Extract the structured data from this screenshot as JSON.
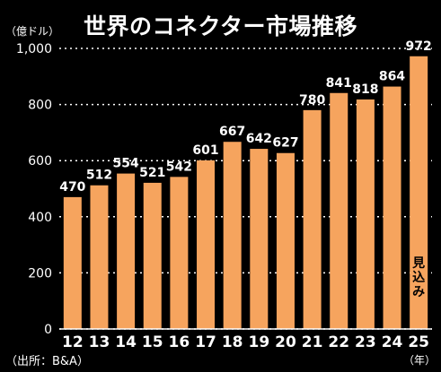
{
  "chart_data": {
    "type": "bar",
    "title": "世界のコネクター市場推移",
    "ylabel": "（億ドル）",
    "xlabel": "（年）",
    "source": "（出所：B&A）",
    "categories": [
      "12",
      "13",
      "14",
      "15",
      "16",
      "17",
      "18",
      "19",
      "20",
      "21",
      "22",
      "23",
      "24",
      "25"
    ],
    "values": [
      470,
      512,
      554,
      521,
      542,
      601,
      667,
      642,
      627,
      780,
      841,
      818,
      864,
      972
    ],
    "ylim": [
      0,
      1000
    ],
    "yticks": [
      0,
      200,
      400,
      600,
      800,
      1000
    ],
    "ytick_labels": [
      "0",
      "200",
      "400",
      "600",
      "800",
      "1,000"
    ],
    "grid": true,
    "bar_color": "#F6A45E",
    "background": "#000000",
    "annotation": "見込み"
  }
}
